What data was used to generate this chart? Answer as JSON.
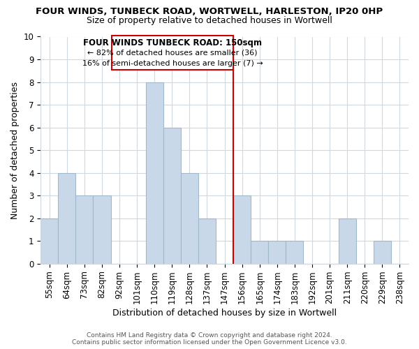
{
  "title": "FOUR WINDS, TUNBECK ROAD, WORTWELL, HARLESTON, IP20 0HP",
  "subtitle": "Size of property relative to detached houses in Wortwell",
  "xlabel": "Distribution of detached houses by size in Wortwell",
  "ylabel": "Number of detached properties",
  "bin_labels": [
    "55sqm",
    "64sqm",
    "73sqm",
    "82sqm",
    "92sqm",
    "101sqm",
    "110sqm",
    "119sqm",
    "128sqm",
    "137sqm",
    "147sqm",
    "156sqm",
    "165sqm",
    "174sqm",
    "183sqm",
    "192sqm",
    "201sqm",
    "211sqm",
    "220sqm",
    "229sqm",
    "238sqm"
  ],
  "bar_values": [
    2,
    4,
    3,
    3,
    0,
    0,
    8,
    6,
    4,
    2,
    0,
    3,
    1,
    1,
    1,
    0,
    0,
    2,
    0,
    1,
    0
  ],
  "bar_color": "#c8d8e8",
  "bar_edge_color": "#a0b8cc",
  "subject_line_index": 10,
  "subject_line_color": "#cc0000",
  "ylim": [
    0,
    10
  ],
  "yticks": [
    0,
    1,
    2,
    3,
    4,
    5,
    6,
    7,
    8,
    9,
    10
  ],
  "grid_color": "#d0d8e0",
  "annotation_title": "FOUR WINDS TUNBECK ROAD: 150sqm",
  "annotation_line1": "← 82% of detached houses are smaller (36)",
  "annotation_line2": "16% of semi-detached houses are larger (7) →",
  "annotation_box_edge": "#cc0000",
  "footer_line1": "Contains HM Land Registry data © Crown copyright and database right 2024.",
  "footer_line2": "Contains public sector information licensed under the Open Government Licence v3.0.",
  "background_color": "#ffffff",
  "title_fontsize": 9.5,
  "subtitle_fontsize": 9.0,
  "xlabel_fontsize": 9.0,
  "ylabel_fontsize": 9.0,
  "tick_fontsize": 8.5,
  "footer_fontsize": 6.5,
  "annot_title_fontsize": 8.5,
  "annot_body_fontsize": 8.0
}
